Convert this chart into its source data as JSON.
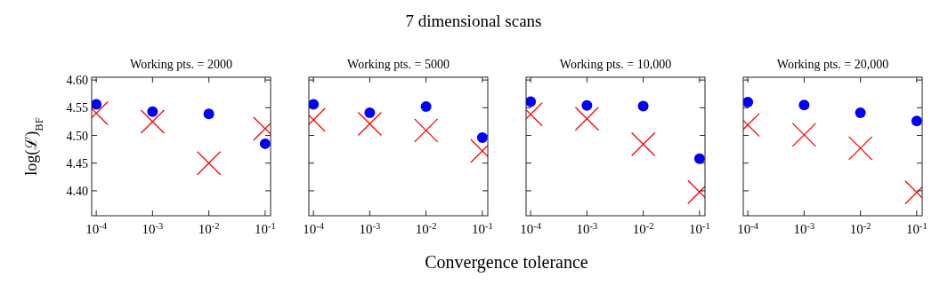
{
  "chart_data": [
    {
      "type": "scatter",
      "title": "Working pts. = 2000",
      "ylabel": "log(ℒ)$_{BF}$",
      "annotations": [
        "7 dimensional scans",
        "Convergence tolerance"
      ],
      "log": "x",
      "x": [
        0.0001,
        0.001,
        0.01,
        0.1
      ],
      "xlim": [
        8.3e-05,
        0.125
      ],
      "ylim": [
        4.355,
        4.605
      ],
      "xticks": [
        {
          "value": 0.0001,
          "label": "10$^{-4}$"
        },
        {
          "value": 0.001,
          "label": "10$^{-3}$"
        },
        {
          "value": 0.01,
          "label": "10$^{-2}$"
        },
        {
          "value": 0.1,
          "label": "10$^{-1}$"
        }
      ],
      "yticks": [
        {
          "value": 4.4,
          "label": "4.40"
        },
        {
          "value": 4.45,
          "label": "4.45"
        },
        {
          "value": 4.5,
          "label": "4.50"
        },
        {
          "value": 4.55,
          "label": "4.55"
        },
        {
          "value": 4.6,
          "label": "4.60"
        }
      ],
      "grid": false,
      "series": [
        {
          "color": "#0000ff",
          "marker": "circle",
          "values": [
            4.556,
            4.543,
            4.539,
            4.485
          ]
        },
        {
          "color": "#ff0000",
          "marker": "cross",
          "values": [
            4.54,
            4.525,
            4.45,
            4.512
          ]
        }
      ]
    },
    {
      "type": "scatter",
      "title": "Working pts. = 5000",
      "log": "x",
      "x": [
        0.0001,
        0.001,
        0.01,
        0.1
      ],
      "xlim": [
        8.3e-05,
        0.125
      ],
      "ylim": [
        4.355,
        4.605
      ],
      "tick_labels": "x",
      "xticks": [
        {
          "value": 0.0001,
          "label": "10$^{-4}$"
        },
        {
          "value": 0.001,
          "label": "10$^{-3}$"
        },
        {
          "value": 0.01,
          "label": "10$^{-2}$"
        },
        {
          "value": 0.1,
          "label": "10$^{-1}$"
        }
      ],
      "yticks": [
        {
          "value": 4.4,
          "label": null
        },
        {
          "value": 4.45,
          "label": null
        },
        {
          "value": 4.5,
          "label": null
        },
        {
          "value": 4.55,
          "label": null
        },
        {
          "value": 4.6,
          "label": null
        }
      ],
      "grid": false,
      "series": [
        {
          "color": "#0000ff",
          "marker": "circle",
          "values": [
            4.556,
            4.541,
            4.552,
            4.496
          ]
        },
        {
          "color": "#ff0000",
          "marker": "cross",
          "values": [
            4.528,
            4.521,
            4.509,
            4.472
          ]
        }
      ]
    },
    {
      "type": "scatter",
      "title": "Working pts. = 10,000",
      "log": "x",
      "x": [
        0.0001,
        0.001,
        0.01,
        0.1
      ],
      "xlim": [
        8.3e-05,
        0.125
      ],
      "ylim": [
        4.355,
        4.605
      ],
      "tick_labels": "x",
      "xticks": [
        {
          "value": 0.0001,
          "label": "10$^{-4}$"
        },
        {
          "value": 0.001,
          "label": "10$^{-3}$"
        },
        {
          "value": 0.01,
          "label": "10$^{-2}$"
        },
        {
          "value": 0.1,
          "label": "10$^{-1}$"
        }
      ],
      "yticks": [
        {
          "value": 4.4,
          "label": null
        },
        {
          "value": 4.45,
          "label": null
        },
        {
          "value": 4.5,
          "label": null
        },
        {
          "value": 4.55,
          "label": null
        },
        {
          "value": 4.6,
          "label": null
        }
      ],
      "grid": false,
      "series": [
        {
          "color": "#0000ff",
          "marker": "circle",
          "values": [
            4.561,
            4.554,
            4.553,
            4.458
          ]
        },
        {
          "color": "#ff0000",
          "marker": "cross",
          "values": [
            4.538,
            4.53,
            4.484,
            4.398
          ]
        }
      ]
    },
    {
      "type": "scatter",
      "title": "Working pts. = 20,000",
      "log": "x",
      "x": [
        0.0001,
        0.001,
        0.01,
        0.1
      ],
      "xlim": [
        8.3e-05,
        0.125
      ],
      "ylim": [
        4.355,
        4.605
      ],
      "tick_labels": "x",
      "xticks": [
        {
          "value": 0.0001,
          "label": "10$^{-4}$"
        },
        {
          "value": 0.001,
          "label": "10$^{-3}$"
        },
        {
          "value": 0.01,
          "label": "10$^{-2}$"
        },
        {
          "value": 0.1,
          "label": "10$^{-1}$"
        }
      ],
      "yticks": [
        {
          "value": 4.4,
          "label": null
        },
        {
          "value": 4.45,
          "label": null
        },
        {
          "value": 4.5,
          "label": null
        },
        {
          "value": 4.55,
          "label": null
        },
        {
          "value": 4.6,
          "label": null
        }
      ],
      "grid": false,
      "series": [
        {
          "color": "#0000ff",
          "marker": "circle",
          "values": [
            4.56,
            4.555,
            4.541,
            4.526
          ]
        },
        {
          "color": "#ff0000",
          "marker": "cross",
          "values": [
            4.519,
            4.501,
            4.477,
            4.397
          ]
        }
      ]
    }
  ]
}
